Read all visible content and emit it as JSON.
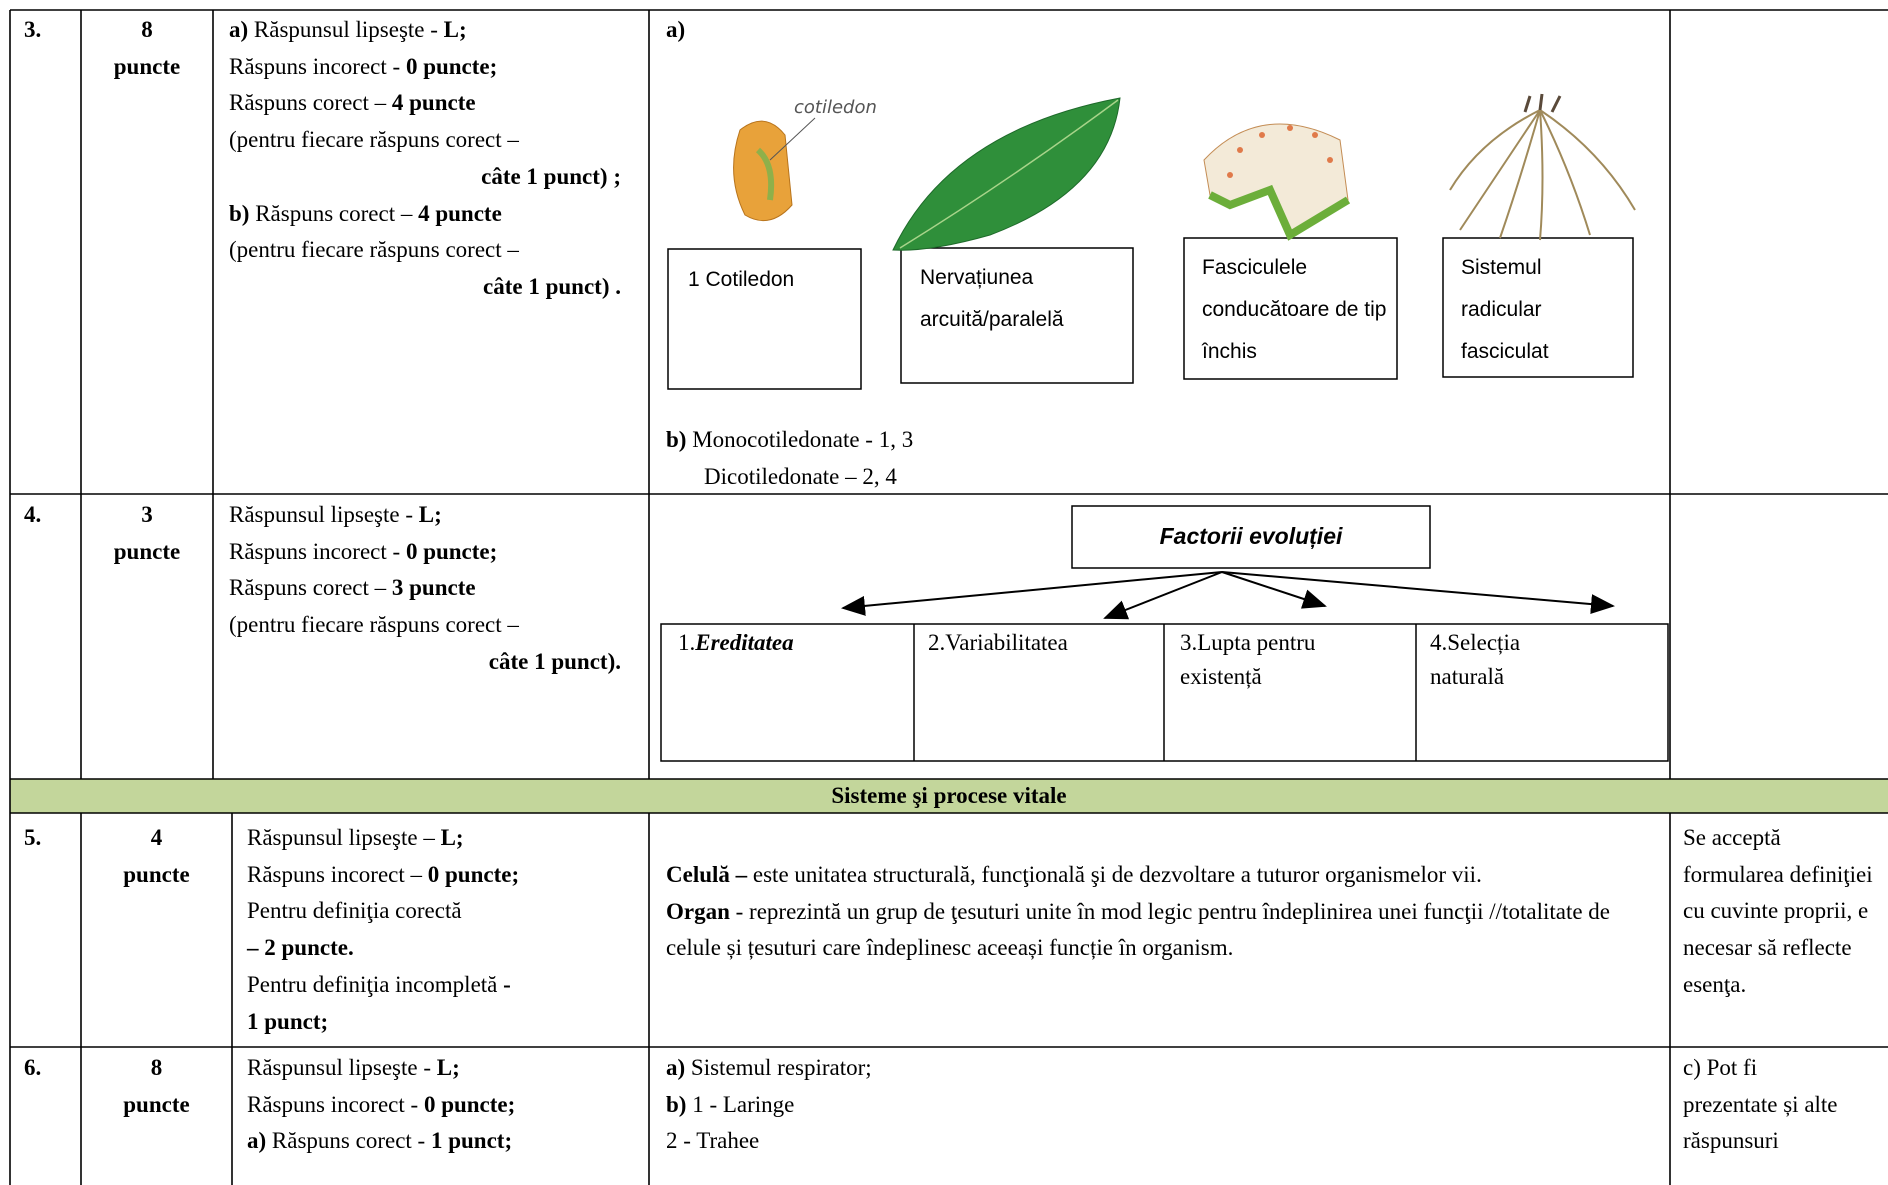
{
  "row3": {
    "number": "3.",
    "points": "8",
    "points_unit": "puncte",
    "criteria": [
      [
        "a)",
        " Răspunsul lipseşte - ",
        "L;"
      ],
      [
        "Răspuns incorect - ",
        "0 puncte;"
      ],
      [
        "Răspuns corect – ",
        "4 puncte"
      ],
      [
        "(pentru fiecare răspuns corect –"
      ],
      [
        "câte 1 punct) ;"
      ],
      [
        "b)",
        " Răspuns corect – ",
        "4 puncte"
      ],
      [
        "(pentru fiecare răspuns corect –"
      ],
      [
        "câte 1 punct) ."
      ]
    ],
    "answer_a_label": "a)",
    "image_caption": "cotiledon",
    "boxes": [
      "1 Cotiledon",
      "Nervațiunea arcuită/paralelă",
      "Fasciculele conducătoare de tip închis",
      "Sistemul radicular fasciculat"
    ],
    "answer_b": [
      [
        "b)",
        " Monocotiledonate - 1, 3"
      ],
      [
        "Dicotiledonate – 2, 4"
      ]
    ]
  },
  "row4": {
    "number": "4.",
    "points": "3",
    "points_unit": "puncte",
    "criteria": [
      [
        "Răspunsul lipseşte - ",
        "L;"
      ],
      [
        "Răspuns incorect - ",
        "0 puncte;"
      ],
      [
        "Răspuns corect – ",
        "3 puncte"
      ],
      [
        "(pentru fiecare răspuns corect –"
      ],
      [
        "câte 1 punct)."
      ]
    ],
    "diagram_title": "Factorii evoluției",
    "factors": [
      [
        "1.",
        "Ereditatea"
      ],
      [
        "2.Variabilitatea"
      ],
      [
        "3.Lupta pentru existență"
      ],
      [
        "4.Selecția naturală"
      ]
    ]
  },
  "section_title": "Sisteme şi procese vitale",
  "row5": {
    "number": "5.",
    "points": "4",
    "points_unit": "puncte",
    "criteria": [
      [
        "Răspunsul lipseşte – ",
        "L;"
      ],
      [
        "Răspuns incorect – ",
        "0 puncte;"
      ],
      [
        "Pentru definiţia corectă"
      ],
      [
        "– 2 puncte."
      ],
      [
        "Pentru definiţia incompletă ",
        "-"
      ],
      [
        "1 punct;"
      ]
    ],
    "answer": [
      [
        "Celulă –",
        " este unitatea structurală, funcţională şi de dezvoltare a tuturor organismelor vii."
      ],
      [
        "Organ",
        " - reprezintă un grup de ţesuturi unite în mod legic pentru îndeplinirea unei funcţii //totalitate de celule și țesuturi care îndeplinesc aceeași funcție în organism."
      ]
    ],
    "note": "Se acceptă formularea definiţiei cu cuvinte proprii, e necesar să reflecte esenţa."
  },
  "row6": {
    "number": "6.",
    "points": "8",
    "points_unit": "puncte",
    "criteria": [
      [
        "Răspunsul lipseşte - ",
        "L;"
      ],
      [
        "Răspuns incorect - ",
        "0 puncte;"
      ],
      [
        "a)",
        " Răspuns corect - ",
        "1 punct;"
      ]
    ],
    "answer": [
      [
        "a)",
        " Sistemul respirator;"
      ],
      [
        "b)",
        " 1 - Laringe"
      ],
      [
        "2 - Trahee"
      ]
    ],
    "note": "c) Pot fi prezentate și alte răspunsuri"
  }
}
